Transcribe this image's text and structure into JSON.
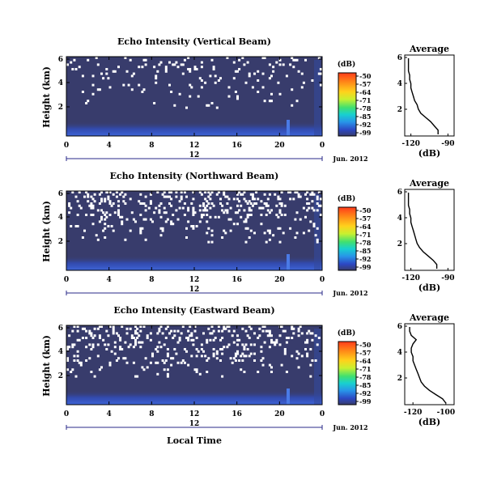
{
  "chart_data": [
    {
      "type": "heatmap",
      "title": "Echo Intensity (Vertical Beam)",
      "ylabel": "Height (km)",
      "x_ticks": [
        "0",
        "4",
        "8",
        "12",
        "16",
        "20",
        "0"
      ],
      "y_ticks": [
        "6",
        "4",
        "2"
      ],
      "date_label": "12",
      "month_label": "Jun. 2012",
      "ylim_km": [
        0,
        6
      ],
      "colorbar": {
        "unit": "(dB)",
        "ticks": [
          "-50",
          "-57",
          "-64",
          "-71",
          "-78",
          "-85",
          "-92",
          "-99"
        ]
      },
      "average": {
        "title": "Average",
        "xlabel": "(dB)",
        "x_ticks": [
          "-120",
          "-90"
        ],
        "xlim": [
          -125,
          -85
        ],
        "y_ticks": [
          "6",
          "4",
          "2"
        ],
        "profile_db": [
          -98,
          -98,
          -101,
          -104,
          -108,
          -112,
          -114,
          -115,
          -117,
          -118,
          -119,
          -120,
          -120,
          -121,
          -121,
          -122,
          -122,
          -122,
          -122
        ]
      }
    },
    {
      "type": "heatmap",
      "title": "Echo Intensity (Northward Beam)",
      "ylabel": "Height (km)",
      "x_ticks": [
        "0",
        "4",
        "8",
        "12",
        "16",
        "20",
        "0"
      ],
      "y_ticks": [
        "6",
        "4",
        "2"
      ],
      "date_label": "12",
      "month_label": "Jun. 2012",
      "ylim_km": [
        0,
        6
      ],
      "colorbar": {
        "unit": "(dB)",
        "ticks": [
          "-50",
          "-57",
          "-64",
          "-71",
          "-78",
          "-85",
          "-92",
          "-99"
        ]
      },
      "average": {
        "title": "Average",
        "xlabel": "(dB)",
        "x_ticks": [
          "-120",
          "-90"
        ],
        "xlim": [
          -125,
          -85
        ],
        "y_ticks": [
          "6",
          "4",
          "2"
        ],
        "profile_db": [
          -99,
          -99,
          -102,
          -106,
          -110,
          -113,
          -115,
          -116,
          -117,
          -118,
          -119,
          -120,
          -120,
          -121,
          -121,
          -122,
          -122,
          -122,
          -122
        ]
      }
    },
    {
      "type": "heatmap",
      "title": "Echo Intensity (Eastward Beam)",
      "ylabel": "Height (km)",
      "x_ticks": [
        "0",
        "4",
        "8",
        "12",
        "16",
        "20",
        "0"
      ],
      "y_ticks": [
        "6",
        "4",
        "2"
      ],
      "date_label": "12",
      "month_label": "Jun. 2012",
      "xlabel": "Local Time",
      "ylim_km": [
        0,
        6
      ],
      "colorbar": {
        "unit": "(dB)",
        "ticks": [
          "-50",
          "-57",
          "-64",
          "-71",
          "-78",
          "-85",
          "-92",
          "-99"
        ]
      },
      "average": {
        "title": "Average",
        "xlabel": "(dB)",
        "x_ticks": [
          "-120",
          "-100"
        ],
        "xlim": [
          -125,
          -95
        ],
        "y_ticks": [
          "6",
          "4",
          "2"
        ],
        "profile_db": [
          -100,
          -102,
          -106,
          -110,
          -113,
          -115,
          -116,
          -117,
          -118,
          -119,
          -120,
          -120,
          -121,
          -121,
          -120,
          -118,
          -121,
          -122,
          -122
        ]
      }
    }
  ],
  "colors": {
    "background": "#383c6c",
    "no_data": "#ffffff",
    "near_ground": "#3f66d8",
    "colorbar": [
      "#ff3b1a",
      "#ff8a18",
      "#ffd21c",
      "#c8f030",
      "#40e070",
      "#18d0d0",
      "#2894e8",
      "#2c48c4",
      "#383c6c"
    ]
  }
}
